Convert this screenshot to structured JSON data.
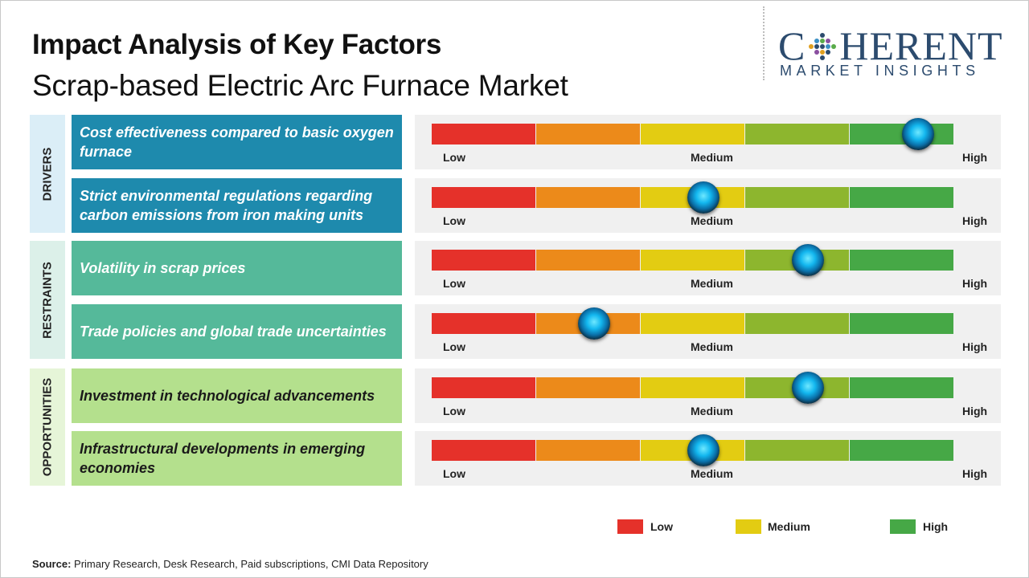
{
  "title": "Impact Analysis of Key Factors",
  "subtitle": "Scrap-based Electric Arc Furnace Market",
  "logo": {
    "main_left": "C",
    "main_right": "HERENT",
    "sub": "MARKET INSIGHTS"
  },
  "colors": {
    "low": "#e5312a",
    "low_med": "#ec8a1a",
    "medium": "#e3cc12",
    "med_high": "#8db62e",
    "high": "#46a846",
    "drivers_factor": "#1e8aad",
    "drivers_section": "#dbeef7",
    "restraints_factor": "#55b99a",
    "restraints_section": "#dcf0e9",
    "opportunities_factor": "#b4e08d",
    "opportunities_section": "#e6f5d8",
    "knob": "#13b7ef"
  },
  "chart_data": {
    "type": "gauge",
    "scale": [
      "Low",
      "Medium",
      "High"
    ],
    "scale_min": 0,
    "scale_max": 100,
    "groups": [
      {
        "name": "DRIVERS",
        "factors": [
          {
            "label": "Cost effectiveness compared to basic oxygen furnace",
            "impact": 93
          },
          {
            "label": "Strict environmental regulations regarding carbon emissions from iron making units",
            "impact": 52
          }
        ]
      },
      {
        "name": "RESTRAINTS",
        "factors": [
          {
            "label": "Volatility in scrap prices",
            "impact": 72
          },
          {
            "label": "Trade policies and global trade uncertainties",
            "impact": 31
          }
        ]
      },
      {
        "name": "OPPORTUNITIES",
        "factors": [
          {
            "label": "Investment in technological advancements",
            "impact": 72
          },
          {
            "label": "Infrastructural developments in emerging economies",
            "impact": 52
          }
        ]
      }
    ],
    "legend": [
      "Low",
      "Medium",
      "High"
    ]
  },
  "source_label": "Source:",
  "source_text": "Primary Research, Desk Research, Paid subscriptions, CMI Data Repository"
}
